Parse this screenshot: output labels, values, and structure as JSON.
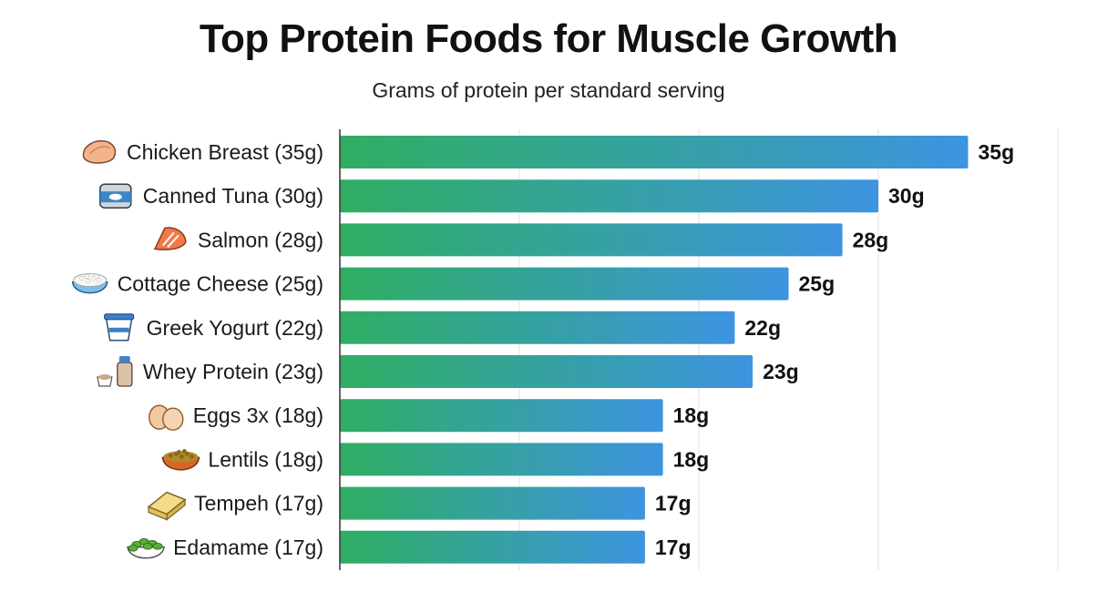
{
  "chart_data": {
    "type": "bar",
    "orientation": "horizontal",
    "title": "Top Protein Foods for Muscle Growth",
    "subtitle": "Grams of protein per standard serving",
    "xlabel": "",
    "ylabel": "",
    "xlim": [
      0,
      40
    ],
    "grid": true,
    "legend": "none",
    "categories": [
      "Chicken Breast (35g)",
      "Canned Tuna (30g)",
      "Salmon (28g)",
      "Cottage Cheese (25g)",
      "Greek Yogurt (22g)",
      "Whey Protein (23g)",
      "Eggs 3x (18g)",
      "Lentils (18g)",
      "Tempeh (17g)",
      "Edamame (17g)"
    ],
    "values": [
      35,
      30,
      28,
      25,
      22,
      23,
      18,
      18,
      17,
      17
    ],
    "value_labels": [
      "35g",
      "30g",
      "28g",
      "25g",
      "22g",
      "23g",
      "18g",
      "18g",
      "17g",
      "17g"
    ],
    "icons": [
      "chicken-breast-icon",
      "canned-tuna-icon",
      "salmon-icon",
      "cottage-cheese-icon",
      "greek-yogurt-icon",
      "whey-protein-icon",
      "eggs-icon",
      "lentils-icon",
      "tempeh-icon",
      "edamame-icon"
    ],
    "colors": {
      "bar_start": "#2fae62",
      "bar_end": "#3d94e0",
      "grid": "#e2e2e2",
      "axis": "#333333"
    }
  }
}
